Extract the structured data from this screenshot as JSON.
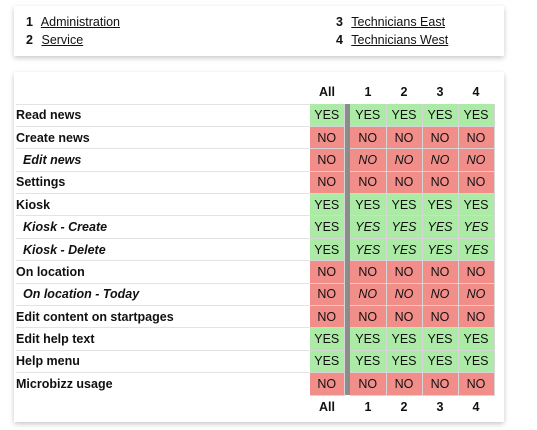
{
  "groups": [
    {
      "num": "1",
      "label": "Administration"
    },
    {
      "num": "2",
      "label": "Service"
    },
    {
      "num": "3",
      "label": "Technicians East"
    },
    {
      "num": "4",
      "label": "Technicians West"
    }
  ],
  "columns": {
    "all": "All",
    "c1": "1",
    "c2": "2",
    "c3": "3",
    "c4": "4"
  },
  "rows": [
    {
      "name": "Read news",
      "sub": false,
      "all": "YES",
      "v": [
        "YES",
        "YES",
        "YES",
        "YES"
      ]
    },
    {
      "name": "Create news",
      "sub": false,
      "all": "NO",
      "v": [
        "NO",
        "NO",
        "NO",
        "NO"
      ]
    },
    {
      "name": "Edit news",
      "sub": true,
      "all": "NO",
      "v": [
        "NO",
        "NO",
        "NO",
        "NO"
      ]
    },
    {
      "name": "Settings",
      "sub": false,
      "all": "NO",
      "v": [
        "NO",
        "NO",
        "NO",
        "NO"
      ]
    },
    {
      "name": "Kiosk",
      "sub": false,
      "all": "YES",
      "v": [
        "YES",
        "YES",
        "YES",
        "YES"
      ]
    },
    {
      "name": "Kiosk - Create",
      "sub": true,
      "all": "YES",
      "v": [
        "YES",
        "YES",
        "YES",
        "YES"
      ]
    },
    {
      "name": "Kiosk - Delete",
      "sub": true,
      "all": "YES",
      "v": [
        "YES",
        "YES",
        "YES",
        "YES"
      ]
    },
    {
      "name": "On location",
      "sub": false,
      "all": "NO",
      "v": [
        "NO",
        "NO",
        "NO",
        "NO"
      ]
    },
    {
      "name": "On location - Today",
      "sub": true,
      "all": "NO",
      "v": [
        "NO",
        "NO",
        "NO",
        "NO"
      ]
    },
    {
      "name": "Edit content on startpages",
      "sub": false,
      "all": "NO",
      "v": [
        "NO",
        "NO",
        "NO",
        "NO"
      ]
    },
    {
      "name": "Edit help text",
      "sub": false,
      "all": "YES",
      "v": [
        "YES",
        "YES",
        "YES",
        "YES"
      ]
    },
    {
      "name": "Help menu",
      "sub": false,
      "all": "YES",
      "v": [
        "YES",
        "YES",
        "YES",
        "YES"
      ]
    },
    {
      "name": "Microbizz usage",
      "sub": false,
      "all": "NO",
      "v": [
        "NO",
        "NO",
        "NO",
        "NO"
      ]
    }
  ],
  "colors": {
    "yes": "#abeba5",
    "no": "#f28e8a",
    "separator": "#8c8c8c"
  }
}
